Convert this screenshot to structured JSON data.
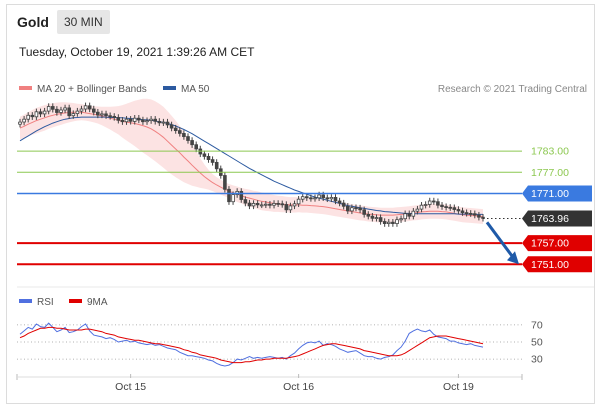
{
  "header": {
    "symbol": "Gold",
    "timeframe": "30 MIN"
  },
  "datetime": "Tuesday, October 19, 2021 1:39:26 AM CET",
  "credit": "Research © 2021 Trading Central",
  "colors": {
    "bollinger": "#f08080",
    "ma50": "#2c5aa0",
    "support": "#e00000",
    "resistance": "#8cc850",
    "pivot": "#3a7ae0",
    "last": "#333333",
    "rsi": "#5070e0",
    "rsi_ma": "#e00000",
    "candle": "#444444"
  },
  "chart_data": [
    {
      "type": "candlestick",
      "title": "",
      "legend": [
        {
          "name": "MA 20 + Bollinger Bands",
          "color": "#f08080"
        },
        {
          "name": "MA 50",
          "color": "#2c5aa0"
        }
      ],
      "x_ticks": [
        "Oct 15",
        "Oct 16",
        "Oct 19"
      ],
      "ylim": [
        1746,
        1798
      ],
      "levels": [
        {
          "label": "1783.00",
          "value": 1783.0,
          "kind": "resistance"
        },
        {
          "label": "1777.00",
          "value": 1777.0,
          "kind": "resistance"
        },
        {
          "label": "1771.00",
          "value": 1771.0,
          "kind": "pivot"
        },
        {
          "label": "1763.96",
          "value": 1763.96,
          "kind": "last"
        },
        {
          "label": "1757.00",
          "value": 1757.0,
          "kind": "support"
        },
        {
          "label": "1751.00",
          "value": 1751.0,
          "kind": "support"
        }
      ],
      "close": [
        1791.2,
        1792.0,
        1793.1,
        1792.7,
        1794.1,
        1793.5,
        1794.3,
        1795.6,
        1794.8,
        1793.9,
        1794.6,
        1795.2,
        1793.0,
        1793.6,
        1794.3,
        1794.9,
        1795.8,
        1794.9,
        1794.0,
        1793.2,
        1793.5,
        1793.0,
        1792.8,
        1792.5,
        1791.7,
        1791.3,
        1792.0,
        1791.4,
        1792.3,
        1791.8,
        1791.3,
        1791.6,
        1792.0,
        1791.4,
        1791.0,
        1791.2,
        1790.4,
        1789.5,
        1788.8,
        1788.0,
        1787.1,
        1786.0,
        1784.8,
        1783.6,
        1782.2,
        1781.5,
        1780.6,
        1779.8,
        1778.0,
        1776.1,
        1772.2,
        1768.7,
        1770.7,
        1771.6,
        1769.3,
        1768.3,
        1767.5,
        1768.2,
        1767.8,
        1767.8,
        1768.0,
        1767.7,
        1768.2,
        1768.1,
        1767.9,
        1766.4,
        1767.5,
        1768.1,
        1769.4,
        1770.1,
        1769.8,
        1769.6,
        1769.8,
        1770.6,
        1769.8,
        1769.5,
        1769.9,
        1768.9,
        1768.3,
        1767.4,
        1766.1,
        1767.0,
        1766.9,
        1766.4,
        1765.1,
        1764.6,
        1764.0,
        1764.2,
        1763.1,
        1762.5,
        1762.9,
        1762.5,
        1763.6,
        1763.9,
        1765.3,
        1764.6,
        1766.0,
        1766.6,
        1767.7,
        1767.9,
        1768.9,
        1768.7,
        1767.7,
        1767.3,
        1767.1,
        1767.0,
        1766.5,
        1766.1,
        1765.6,
        1765.4,
        1765.3,
        1764.9,
        1764.3,
        1764.0
      ],
      "ma20": [
        1789.5,
        1790.0,
        1790.6,
        1791.1,
        1791.6,
        1792.0,
        1792.4,
        1792.8,
        1793.1,
        1793.4,
        1793.6,
        1793.8,
        1793.9,
        1794.0,
        1794.0,
        1794.0,
        1793.8,
        1793.6,
        1793.4,
        1793.2,
        1792.9,
        1792.6,
        1792.3,
        1792.0,
        1791.7,
        1791.4,
        1791.2,
        1791.0,
        1790.8,
        1790.5,
        1790.2,
        1789.8,
        1789.3,
        1788.6,
        1787.8,
        1786.9,
        1785.8,
        1784.7,
        1783.6,
        1782.5,
        1781.3,
        1780.2,
        1779.0,
        1777.9,
        1776.8,
        1775.8,
        1774.9,
        1774.1,
        1773.4,
        1772.8,
        1772.2,
        1771.7,
        1771.2,
        1770.8,
        1770.4,
        1770.0,
        1769.7,
        1769.4,
        1769.1,
        1768.8,
        1768.6,
        1768.4,
        1768.2,
        1768.1,
        1768.0,
        1767.9,
        1767.8,
        1767.8,
        1767.8,
        1767.7,
        1767.7,
        1767.6,
        1767.5,
        1767.4,
        1767.3,
        1767.1,
        1766.9,
        1766.7,
        1766.5,
        1766.3,
        1766.1,
        1765.9,
        1765.7,
        1765.5,
        1765.4,
        1765.2,
        1765.1,
        1765.0,
        1764.9,
        1764.9,
        1764.9,
        1764.9,
        1765.0,
        1765.1,
        1765.2,
        1765.3,
        1765.5,
        1765.6,
        1765.8,
        1765.9,
        1766.0,
        1766.0,
        1766.0,
        1765.9,
        1765.8,
        1765.6,
        1765.4,
        1765.2,
        1765.0,
        1764.9,
        1764.8,
        1764.7,
        1764.6,
        1764.5
      ],
      "ma50": [
        1785.9,
        1786.6,
        1787.3,
        1788.0,
        1788.7,
        1789.3,
        1789.9,
        1790.4,
        1790.9,
        1791.3,
        1791.7,
        1792.0,
        1792.2,
        1792.4,
        1792.5,
        1792.6,
        1792.6,
        1792.6,
        1792.6,
        1792.6,
        1792.6,
        1792.6,
        1792.5,
        1792.5,
        1792.4,
        1792.4,
        1792.3,
        1792.2,
        1792.1,
        1792.0,
        1791.9,
        1791.8,
        1791.7,
        1791.5,
        1791.3,
        1791.1,
        1790.8,
        1790.5,
        1790.1,
        1789.6,
        1789.1,
        1788.5,
        1787.9,
        1787.2,
        1786.5,
        1785.8,
        1785.1,
        1784.4,
        1783.7,
        1783.0,
        1782.3,
        1781.6,
        1780.9,
        1780.2,
        1779.5,
        1778.8,
        1778.1,
        1777.5,
        1776.9,
        1776.3,
        1775.7,
        1775.1,
        1774.5,
        1774.0,
        1773.5,
        1773.0,
        1772.5,
        1772.0,
        1771.6,
        1771.2,
        1770.8,
        1770.4,
        1770.0,
        1769.7,
        1769.4,
        1769.1,
        1768.8,
        1768.5,
        1768.2,
        1767.9,
        1767.6,
        1767.4,
        1767.2,
        1767.0,
        1766.8,
        1766.6,
        1766.4,
        1766.2,
        1766.1,
        1765.9,
        1765.8,
        1765.7,
        1765.6,
        1765.5,
        1765.4,
        1765.4,
        1765.3,
        1765.3,
        1765.3,
        1765.3,
        1765.3,
        1765.3,
        1765.3,
        1765.3,
        1765.3,
        1765.3,
        1765.3,
        1765.2,
        1765.2,
        1765.2,
        1765.2,
        1765.1,
        1765.1,
        1765.1
      ],
      "bb_width": [
        3.2,
        3.3,
        3.4,
        3.5,
        3.6,
        3.6,
        3.6,
        3.5,
        3.4,
        3.3,
        3.2,
        3.0,
        2.8,
        2.6,
        2.4,
        2.3,
        2.2,
        2.2,
        2.3,
        2.4,
        2.6,
        2.9,
        3.2,
        3.6,
        4.0,
        4.6,
        5.2,
        5.8,
        6.4,
        7.0,
        7.6,
        8.0,
        8.3,
        8.5,
        8.6,
        8.6,
        8.5,
        8.3,
        8.0,
        7.6,
        7.1,
        6.5,
        5.8,
        5.0,
        4.2,
        3.4,
        2.8,
        2.4,
        2.2,
        2.1,
        2.0,
        2.0,
        2.1,
        2.2,
        2.2,
        2.3,
        2.4,
        2.4,
        2.5,
        2.5,
        2.5,
        2.4,
        2.4,
        2.3,
        2.3,
        2.2,
        2.2,
        2.2,
        2.1,
        2.1,
        2.1,
        2.1,
        2.1,
        2.1,
        2.1,
        2.1,
        2.1,
        2.1,
        2.1,
        2.1,
        2.1,
        2.1,
        2.1,
        2.1,
        2.1,
        2.1,
        2.1,
        2.1,
        2.1,
        2.1,
        2.1,
        2.1,
        2.1,
        2.1,
        2.1,
        2.1,
        2.1,
        2.1,
        2.1,
        2.1,
        2.1,
        2.1,
        2.1,
        2.1,
        2.1,
        2.1,
        2.1,
        2.1,
        2.1,
        2.1,
        2.1,
        2.1,
        2.1,
        2.1
      ],
      "forecast_arrow": {
        "from": 1764.0,
        "to": 1751.0
      }
    },
    {
      "type": "line",
      "title": "",
      "legend": [
        {
          "name": "RSI",
          "color": "#5070e0"
        },
        {
          "name": "9MA",
          "color": "#e00000"
        }
      ],
      "ylim": [
        15,
        85
      ],
      "y_ticks": [
        "70",
        "50",
        "30"
      ],
      "series": [
        {
          "name": "RSI",
          "values": [
            59,
            63,
            67,
            65,
            71,
            68,
            67,
            72,
            67,
            62,
            64,
            67,
            61,
            62,
            64,
            68,
            71,
            63,
            58,
            57,
            56,
            54,
            55,
            53,
            50,
            51,
            52,
            50,
            51,
            49,
            48,
            47,
            48,
            46,
            47,
            45,
            43,
            42,
            41,
            38,
            36,
            34,
            34,
            33,
            32,
            31,
            29,
            28,
            25,
            23,
            22,
            23,
            26,
            30,
            29,
            31,
            33,
            31,
            32,
            31,
            32,
            33,
            32,
            31,
            32,
            30,
            34,
            37,
            42,
            46,
            49,
            50,
            49,
            51,
            46,
            48,
            47,
            45,
            42,
            40,
            38,
            39,
            40,
            37,
            34,
            33,
            33,
            31,
            30,
            32,
            33,
            35,
            40,
            44,
            51,
            60,
            63,
            65,
            63,
            62,
            64,
            59,
            56,
            55,
            54,
            51,
            51,
            49,
            48,
            47,
            48,
            46,
            45,
            44
          ]
        },
        {
          "name": "9MA",
          "values": [
            55,
            57,
            60,
            62,
            64,
            66,
            66,
            67,
            67,
            66,
            66,
            65,
            64,
            64,
            64,
            64,
            65,
            65,
            64,
            63,
            62,
            60,
            59,
            58,
            56,
            55,
            54,
            53,
            52,
            52,
            51,
            50,
            49,
            48,
            48,
            47,
            46,
            45,
            44,
            43,
            41,
            40,
            38,
            37,
            35,
            34,
            33,
            32,
            31,
            29,
            28,
            27,
            26,
            26,
            26,
            27,
            27,
            28,
            29,
            29,
            30,
            30,
            31,
            31,
            31,
            31,
            32,
            33,
            34,
            36,
            38,
            40,
            42,
            44,
            46,
            47,
            48,
            48,
            47,
            46,
            45,
            44,
            43,
            42,
            40,
            39,
            38,
            37,
            36,
            35,
            34,
            34,
            34,
            35,
            37,
            40,
            43,
            46,
            49,
            52,
            55,
            56,
            57,
            57,
            57,
            56,
            55,
            54,
            53,
            52,
            51,
            50,
            49,
            48
          ]
        }
      ]
    }
  ]
}
